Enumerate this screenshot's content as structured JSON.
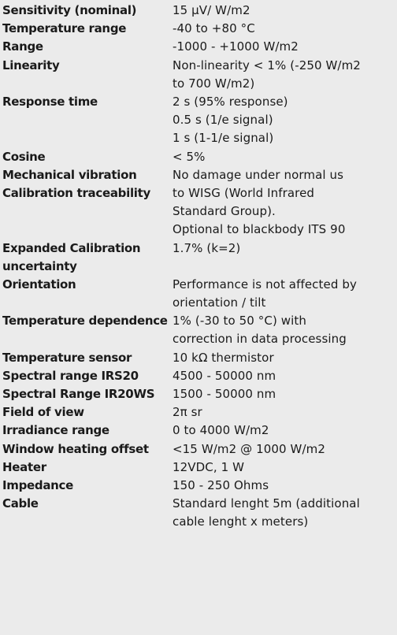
{
  "specs": [
    {
      "label": "Sensitivity (nominal)",
      "value": [
        "15 µV/ W/m2"
      ]
    },
    {
      "label": "Temperature range",
      "value": [
        "-40 to +80 °C"
      ]
    },
    {
      "label": "Range",
      "value": [
        "-1000 - +1000 W/m2"
      ]
    },
    {
      "label": "Linearity",
      "value": [
        "Non-linearity < 1% (-250 W/m2",
        "to 700 W/m2)"
      ]
    },
    {
      "label": "Response time",
      "value": [
        "2 s (95% response)",
        "0.5 s (1/e signal)",
        "1 s (1-1/e signal)"
      ]
    },
    {
      "label": "Cosine",
      "value": [
        "< 5%"
      ]
    },
    {
      "label": "Mechanical vibration",
      "value": [
        "No damage under normal us"
      ]
    },
    {
      "label": "Calibration traceability",
      "value": [
        "to WISG (World Infrared",
        "Standard Group).",
        "Optional to blackbody ITS 90"
      ]
    },
    {
      "label_lines": [
        "Expanded Calibration",
        "uncertainty"
      ],
      "value": [
        "1.7% (k=2)"
      ]
    },
    {
      "label": "Orientation",
      "value": [
        "Performance is not affected by",
        "orientation / tilt"
      ]
    },
    {
      "label": "Temperature dependence",
      "value": [
        "1%  (-30 to 50 °C) with",
        "correction in data processing"
      ]
    },
    {
      "label": "Temperature sensor",
      "value": [
        "10 kΩ thermistor"
      ]
    },
    {
      "label": "Spectral range IRS20",
      "value": [
        "4500 - 50000 nm"
      ]
    },
    {
      "label": "Spectral Range IR20WS",
      "value": [
        "1500 - 50000 nm"
      ]
    },
    {
      "label": "Field of view",
      "value": [
        "2π sr"
      ]
    },
    {
      "label": "Irradiance range",
      "value": [
        "0 to 4000  W/m2"
      ]
    },
    {
      "label": "Window heating offset",
      "value": [
        "<15 W/m2 @ 1000 W/m2"
      ]
    },
    {
      "label": "Heater",
      "value": [
        "12VDC, 1 W"
      ]
    },
    {
      "label": "Impedance",
      "value": [
        "150 - 250 Ohms"
      ]
    },
    {
      "label": "Cable",
      "value": [
        "Standard lenght 5m (additional",
        "cable lenght x meters)"
      ]
    }
  ]
}
